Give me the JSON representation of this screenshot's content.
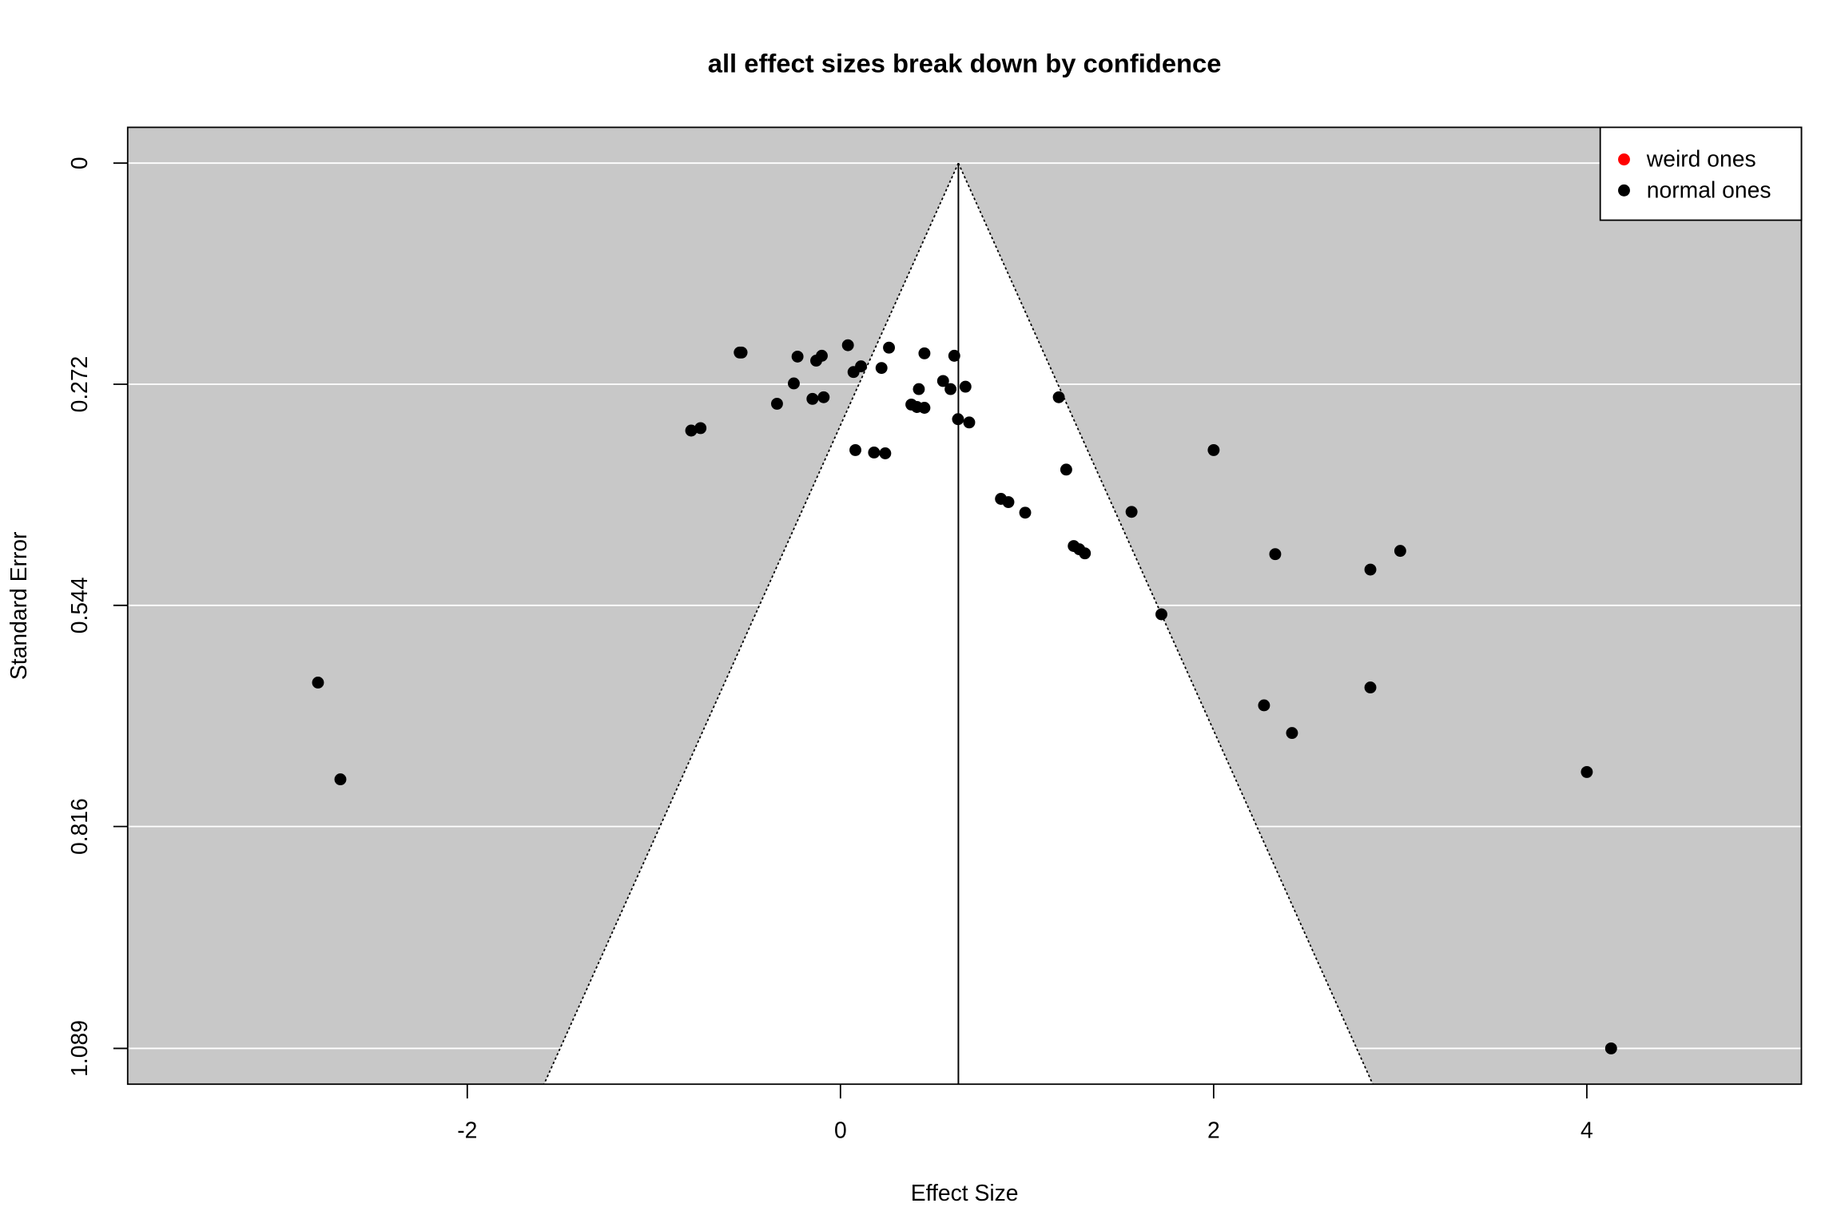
{
  "chart_data": {
    "type": "funnel",
    "title": "all effect sizes break down by confidence",
    "x_label": "Effect Size",
    "y_label": "Standard Error",
    "xlim": [
      -3.82,
      5.15
    ],
    "xticks": [
      -2,
      0,
      2,
      4
    ],
    "ylim": [
      -0.044,
      1.133
    ],
    "yticks": [
      0,
      0.272,
      0.544,
      0.816,
      1.089
    ],
    "invert_y": true,
    "grid": true,
    "legend_position": "top-right",
    "reference_line": 0.632,
    "z": 1.96,
    "series": [
      {
        "name": "weird ones",
        "color": "#ff0000",
        "x": [],
        "values": []
      },
      {
        "name": "normal ones",
        "color": "#000000",
        "x": [
          -0.54,
          -0.53,
          -0.23,
          -0.13,
          -0.1,
          0.04,
          0.26,
          0.45,
          0.61,
          0.11,
          0.07,
          0.22,
          -0.25,
          -0.34,
          -0.15,
          -0.09,
          0.42,
          0.55,
          0.59,
          0.67,
          0.38,
          0.41,
          0.45,
          0.63,
          0.69,
          -0.8,
          -0.75,
          0.08,
          0.18,
          0.24,
          1.17,
          1.21,
          2.0,
          0.86,
          0.9,
          0.99,
          1.56,
          1.25,
          1.28,
          1.31,
          2.33,
          2.84,
          3.0,
          1.72,
          -2.8,
          -2.68,
          2.27,
          2.42,
          2.84,
          4.0,
          4.13
        ],
        "values": [
          0.233,
          0.233,
          0.238,
          0.243,
          0.237,
          0.224,
          0.227,
          0.234,
          0.237,
          0.25,
          0.257,
          0.252,
          0.271,
          0.296,
          0.29,
          0.288,
          0.278,
          0.268,
          0.278,
          0.275,
          0.297,
          0.3,
          0.301,
          0.315,
          0.319,
          0.329,
          0.326,
          0.353,
          0.356,
          0.357,
          0.288,
          0.377,
          0.353,
          0.413,
          0.417,
          0.43,
          0.429,
          0.471,
          0.475,
          0.48,
          0.481,
          0.5,
          0.477,
          0.555,
          0.639,
          0.758,
          0.667,
          0.701,
          0.645,
          0.749,
          1.089
        ]
      }
    ]
  }
}
